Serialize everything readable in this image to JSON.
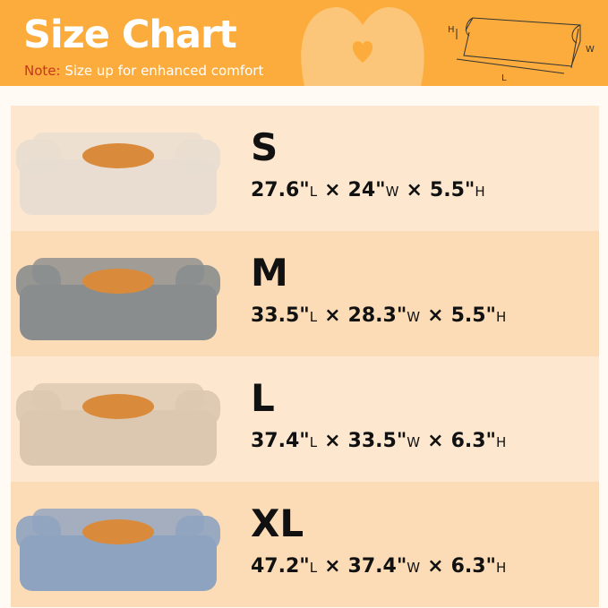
{
  "header": {
    "title": "Size Chart",
    "note_label": "Note:",
    "note_text": " Size up for enhanced comfort",
    "diagram_labels": {
      "h": "H",
      "w": "W",
      "l": "L"
    }
  },
  "colors": {
    "header": "#fbac3c",
    "note_label": "#c8371c",
    "row_light": "#fde8cf",
    "row_dark": "#fcdcb6"
  },
  "sizes": [
    {
      "name": "S",
      "bed_color": "#e8ddd0",
      "dims": [
        {
          "v": "27.6\"",
          "u": "L"
        },
        {
          "v": "24\"",
          "u": "W"
        },
        {
          "v": "5.5\"",
          "u": "H"
        }
      ]
    },
    {
      "name": "M",
      "bed_color": "#8a8d8e",
      "dims": [
        {
          "v": "33.5\"",
          "u": "L"
        },
        {
          "v": "28.3\"",
          "u": "W"
        },
        {
          "v": "5.5\"",
          "u": "H"
        }
      ]
    },
    {
      "name": "L",
      "bed_color": "#dcc8b0",
      "dims": [
        {
          "v": "37.4\"",
          "u": "L"
        },
        {
          "v": "33.5\"",
          "u": "W"
        },
        {
          "v": "6.3\"",
          "u": "H"
        }
      ]
    },
    {
      "name": "XL",
      "bed_color": "#8ea3c0",
      "dims": [
        {
          "v": "47.2\"",
          "u": "L"
        },
        {
          "v": "37.4\"",
          "u": "W"
        },
        {
          "v": "6.3\"",
          "u": "H"
        }
      ]
    }
  ],
  "separator": "×"
}
